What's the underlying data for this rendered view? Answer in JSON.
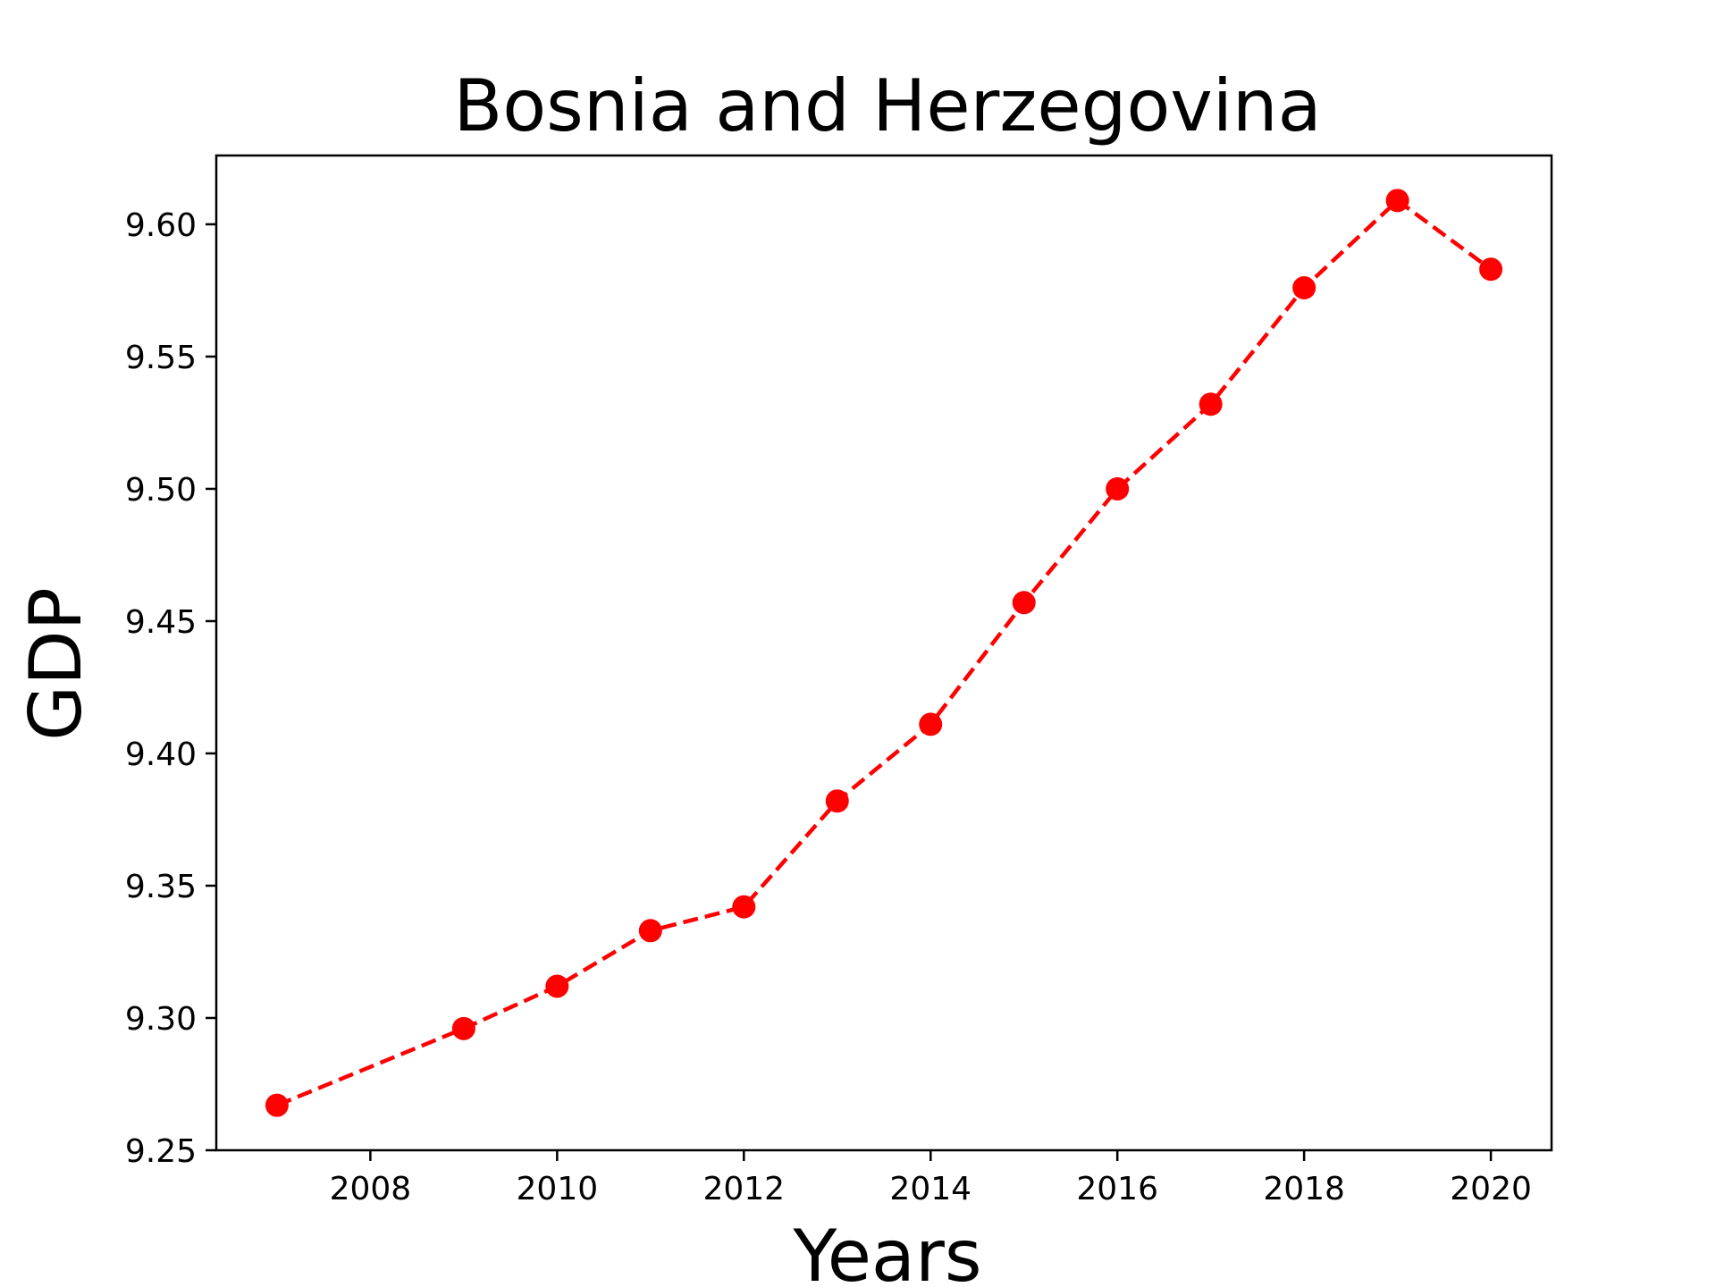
{
  "chart_data": {
    "type": "line",
    "title": "Bosnia and Herzegovina",
    "xlabel": "Years",
    "ylabel": "GDP",
    "x": [
      2007,
      2009,
      2010,
      2011,
      2012,
      2013,
      2014,
      2015,
      2016,
      2017,
      2018,
      2019,
      2020
    ],
    "series": [
      {
        "name": "GDP",
        "values": [
          9.267,
          9.296,
          9.312,
          9.333,
          9.342,
          9.382,
          9.411,
          9.457,
          9.5,
          9.532,
          9.576,
          9.609,
          9.583
        ],
        "color": "#ff0000",
        "line_style": "dashed",
        "marker": "circle"
      }
    ],
    "xticks": [
      2008,
      2010,
      2012,
      2014,
      2016,
      2018,
      2020
    ],
    "xtick_labels": [
      "2008",
      "2010",
      "2012",
      "2014",
      "2016",
      "2018",
      "2020"
    ],
    "yticks": [
      9.25,
      9.3,
      9.35,
      9.4,
      9.45,
      9.5,
      9.55,
      9.6
    ],
    "ytick_labels": [
      "9.25",
      "9.30",
      "9.35",
      "9.40",
      "9.45",
      "9.50",
      "9.55",
      "9.60"
    ],
    "xlim": [
      2006.35,
      2020.65
    ],
    "ylim": [
      9.25,
      9.626
    ],
    "grid": false,
    "legend": "none"
  }
}
